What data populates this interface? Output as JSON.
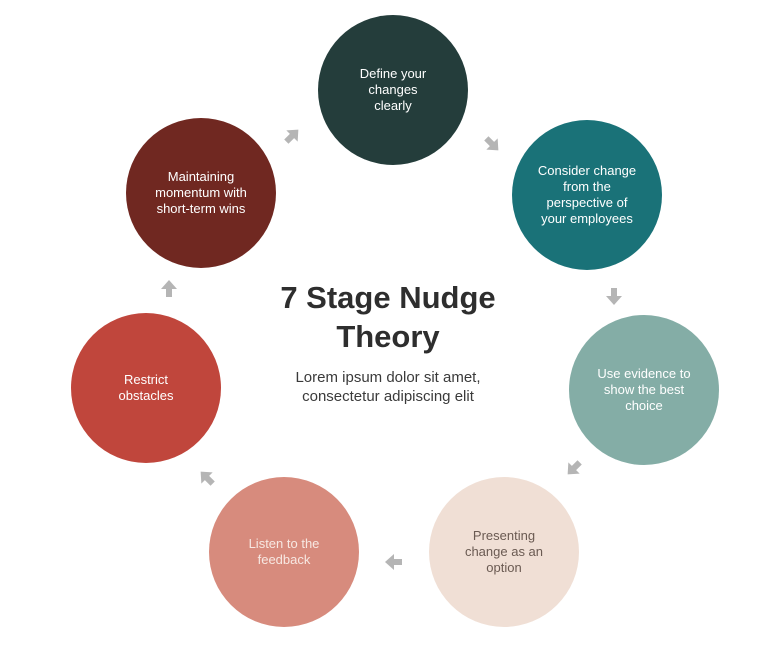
{
  "title": "7 Stage Nudge\nTheory",
  "subtitle": "Lorem ipsum dolor sit amet,\nconsectetur adipiscing elit",
  "stages": [
    {
      "label": "Define your\nchanges\nclearly"
    },
    {
      "label": "Consider change\nfrom the\nperspective of\nyour employees"
    },
    {
      "label": "Use evidence to\nshow the best\nchoice"
    },
    {
      "label": "Presenting\nchange as an\noption"
    },
    {
      "label": "Listen to the\nfeedback"
    },
    {
      "label": "Restrict\nobstacles"
    },
    {
      "label": "Maintaining\nmomentum with\nshort-term wins"
    }
  ],
  "colors": {
    "arrow": "#b5b5b5"
  }
}
